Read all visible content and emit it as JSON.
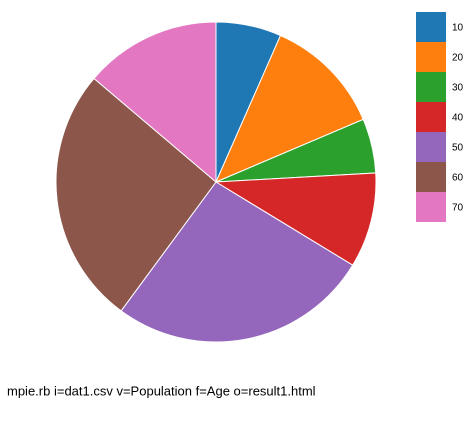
{
  "chart_data": {
    "type": "pie",
    "categories": [
      "10",
      "20",
      "30",
      "40",
      "50",
      "60",
      "70"
    ],
    "values": [
      6.6,
      12.0,
      5.5,
      9.6,
      26.4,
      26.1,
      13.8
    ],
    "colors": [
      "#1f77b4",
      "#ff7f0e",
      "#2ca02c",
      "#d62728",
      "#9467bd",
      "#8c564b",
      "#e377c2"
    ],
    "caption": "mpie.rb i=dat1.csv v=Population f=Age o=result1.html"
  }
}
